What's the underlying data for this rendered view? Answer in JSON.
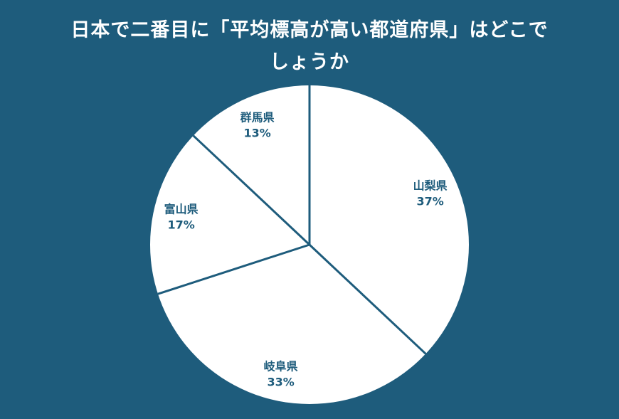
{
  "page": {
    "background_color": "#1e5c7c",
    "title_color": "#ffffff"
  },
  "title": {
    "line1": "日本で二番目に「平均標高が高い都道府県」はどこで",
    "line2": "しょうか"
  },
  "chart_data": {
    "type": "pie",
    "title": "日本で二番目に「平均標高が高い都道府県」はどこでしょうか",
    "categories": [
      "山梨県",
      "岐阜県",
      "富山県",
      "群馬県"
    ],
    "values": [
      37,
      33,
      17,
      13
    ],
    "labels": [
      "山梨県 37%",
      "岐阜県 33%",
      "富山県 17%",
      "群馬県 13%"
    ],
    "unit": "%",
    "total": 100,
    "start_angle_deg": 0,
    "direction": "clockwise",
    "slice_fill": "#ffffff",
    "divider_color": "#1e5c7c",
    "label_color": "#1e5c7c",
    "legend_position": "labels-inside"
  }
}
